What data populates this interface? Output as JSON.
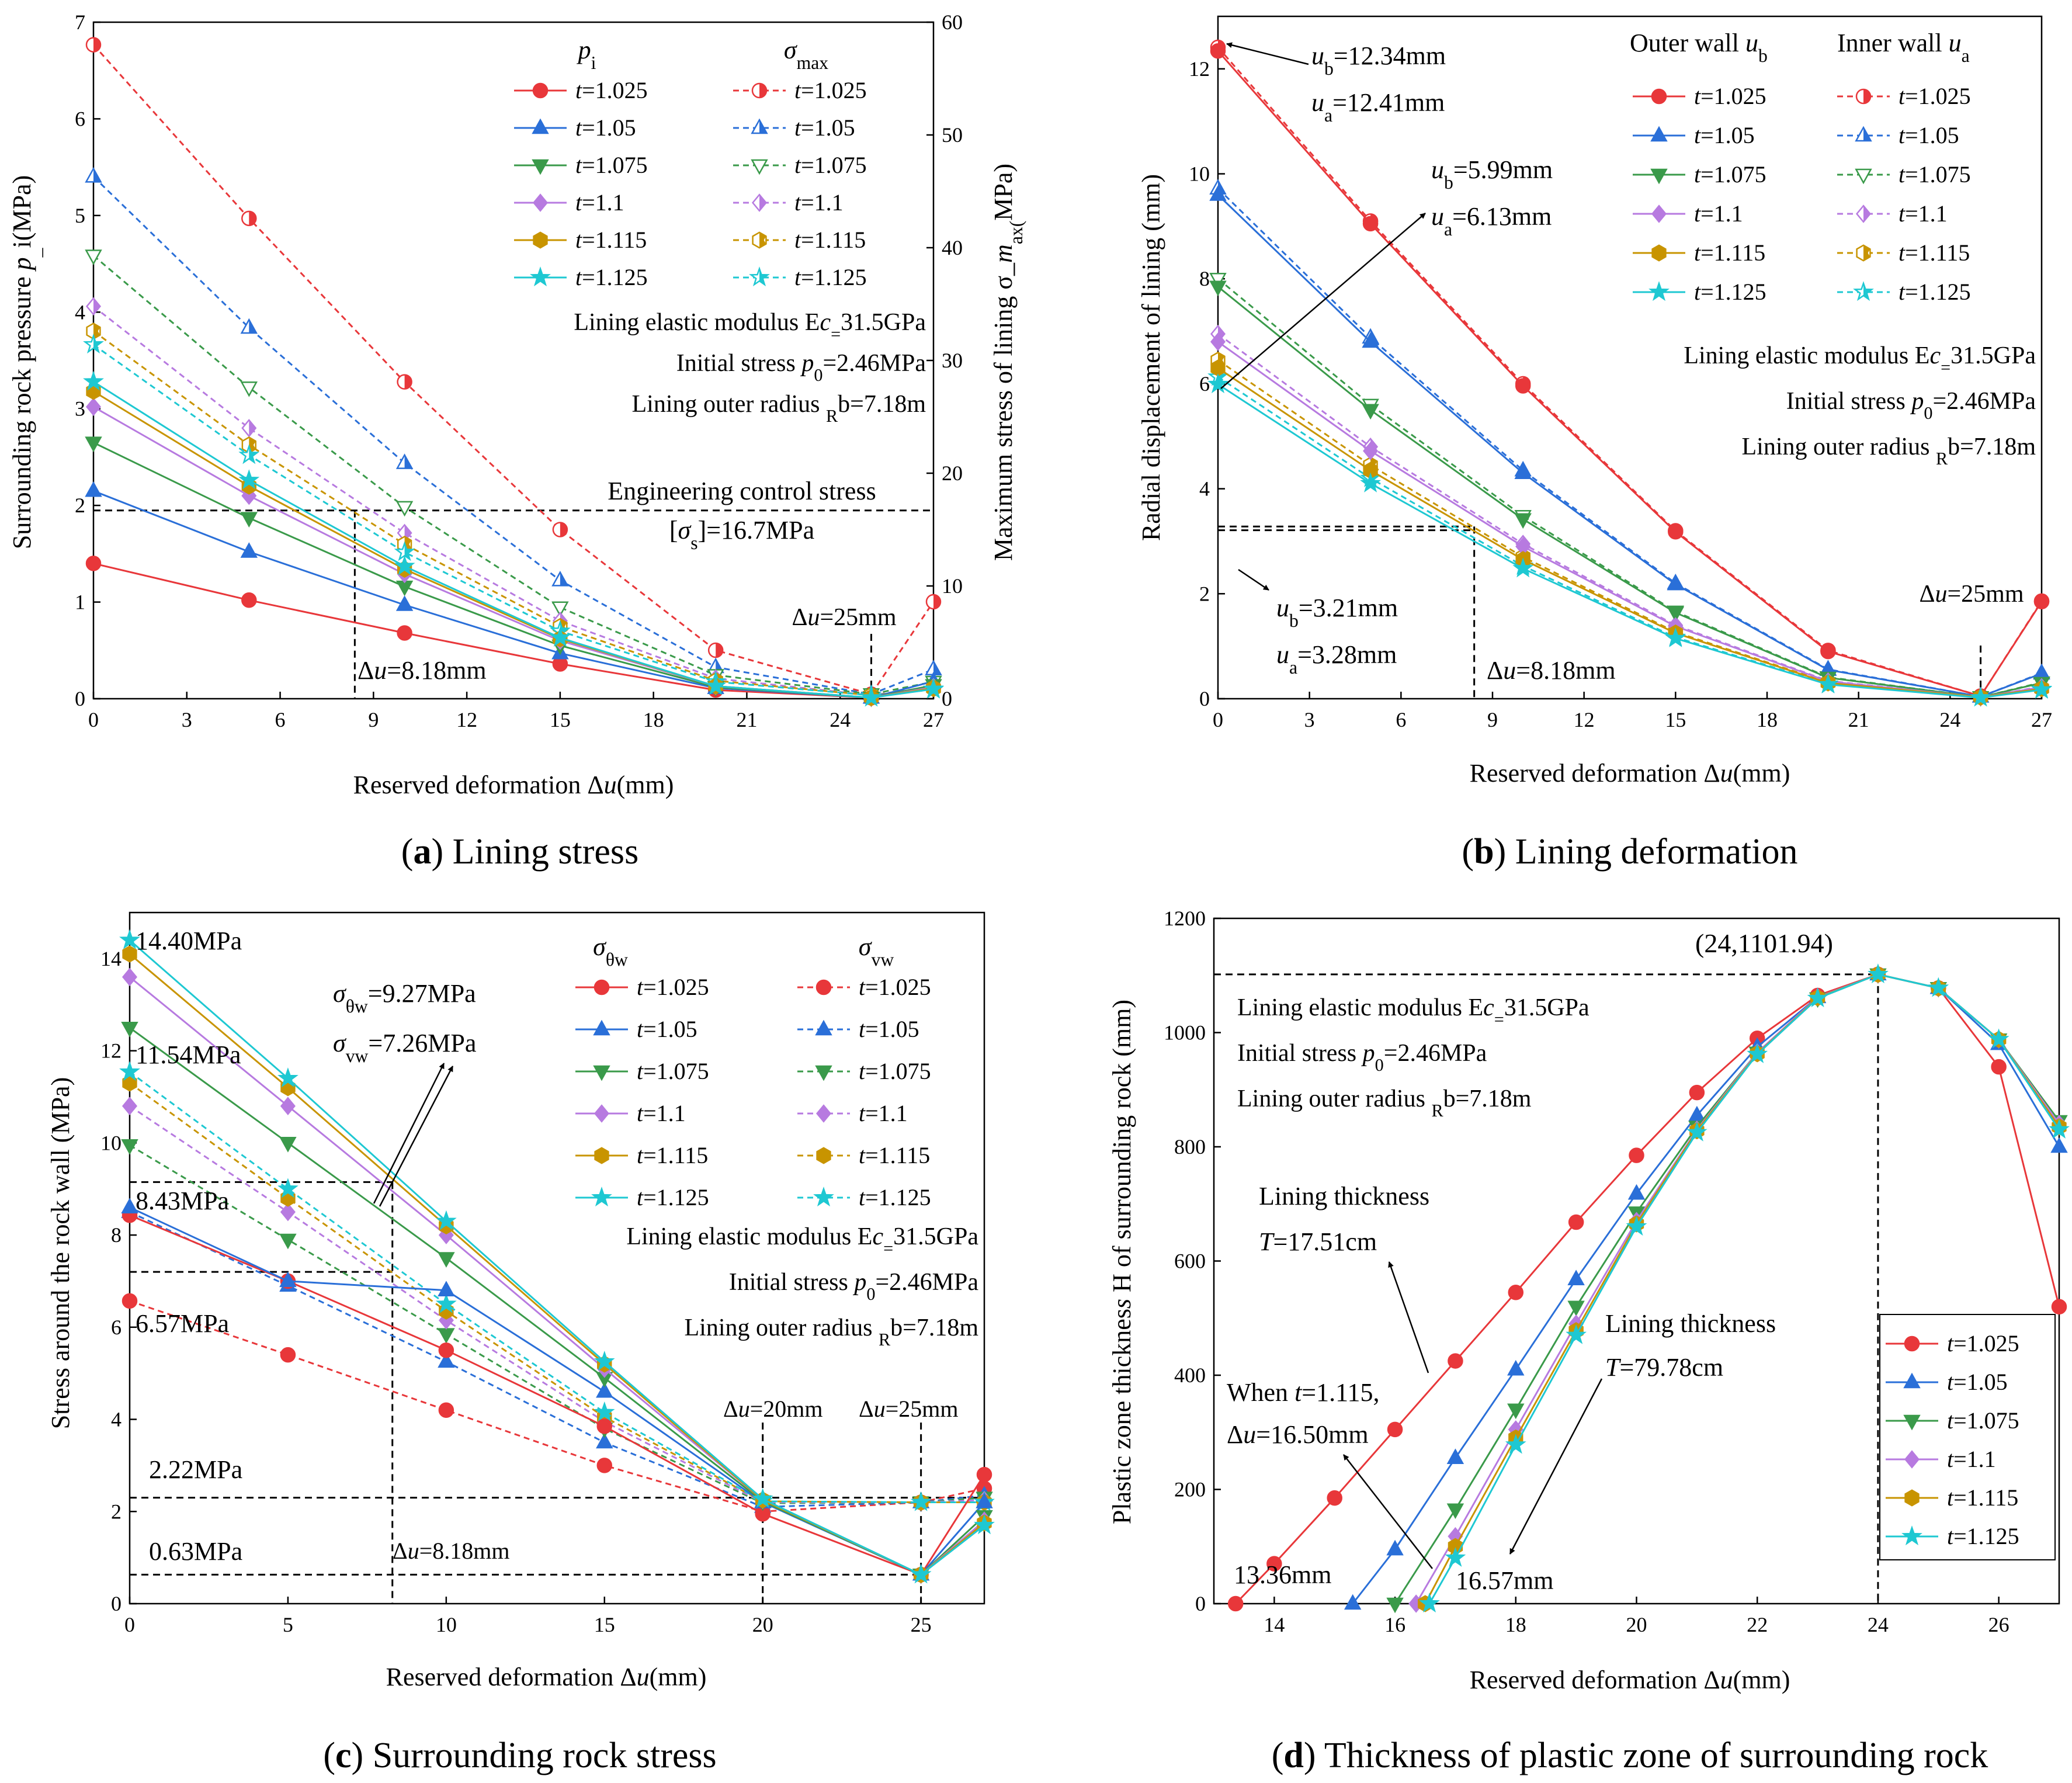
{
  "colors": {
    "t1025": "#e8373a",
    "t105": "#2a6fd8",
    "t1075": "#3a9a4a",
    "t11": "#b77ae0",
    "t1115": "#c89400",
    "t1125": "#1ec8d2"
  },
  "chart_data": [
    {
      "id": "a",
      "type": "line",
      "caption_letter": "(a)",
      "caption_text": " Lining stress",
      "xlabel": "Reserved deformation Δu(mm)",
      "ylabel": "Surrounding rock pressure p_i(MPa)",
      "y2label": "Maximum stress of lining σ_max(MPa)",
      "xlim": [
        0,
        27
      ],
      "ylim": [
        0,
        7
      ],
      "y2lim": [
        0,
        60
      ],
      "xticks": [
        "0",
        "3",
        "6",
        "9",
        "12",
        "15",
        "18",
        "21",
        "24",
        "27"
      ],
      "yticks": [
        "0",
        "1",
        "2",
        "3",
        "4",
        "5",
        "6",
        "7"
      ],
      "y2ticks": [
        "0",
        "10",
        "20",
        "30",
        "40",
        "50",
        "60"
      ],
      "x": [
        0,
        5,
        10,
        15,
        20,
        25,
        27
      ],
      "legend_headers": [
        "pi",
        "σmax"
      ],
      "legend_labels": [
        "t=1.025",
        "t=1.05",
        "t=1.075",
        "t=1.1",
        "t=1.115",
        "t=1.125"
      ],
      "series_pi": [
        {
          "name": "t=1.025",
          "values": [
            1.4,
            1.02,
            0.68,
            0.36,
            0.09,
            0.01,
            0.12
          ]
        },
        {
          "name": "t=1.05",
          "values": [
            2.15,
            1.52,
            0.97,
            0.47,
            0.11,
            0.01,
            0.18
          ]
        },
        {
          "name": "t=1.075",
          "values": [
            2.65,
            1.87,
            1.16,
            0.55,
            0.12,
            0.01,
            0.14
          ]
        },
        {
          "name": "t=1.1",
          "values": [
            3.02,
            2.1,
            1.29,
            0.6,
            0.13,
            0.01,
            0.12
          ]
        },
        {
          "name": "t=1.115",
          "values": [
            3.18,
            2.2,
            1.34,
            0.62,
            0.13,
            0.01,
            0.11
          ]
        },
        {
          "name": "t=1.125",
          "values": [
            3.28,
            2.26,
            1.37,
            0.63,
            0.13,
            0.01,
            0.1
          ]
        }
      ],
      "series_smax": [
        {
          "name": "t=1.025",
          "values": [
            58.0,
            42.6,
            28.1,
            15.0,
            4.3,
            0.4,
            8.6
          ]
        },
        {
          "name": "t=1.05",
          "values": [
            46.3,
            32.9,
            20.9,
            10.5,
            2.8,
            0.4,
            2.6
          ]
        },
        {
          "name": "t=1.075",
          "values": [
            39.3,
            27.6,
            17.0,
            8.1,
            2.1,
            0.4,
            1.5
          ]
        },
        {
          "name": "t=1.1",
          "values": [
            34.8,
            24.0,
            14.7,
            6.9,
            1.8,
            0.3,
            1.1
          ]
        },
        {
          "name": "t=1.115",
          "values": [
            32.6,
            22.5,
            13.7,
            6.4,
            1.6,
            0.3,
            0.9
          ]
        },
        {
          "name": "t=1.125",
          "values": [
            31.4,
            21.6,
            13.0,
            6.0,
            1.5,
            0.3,
            0.8
          ]
        }
      ],
      "annotations": {
        "modulus": "Lining elastic modulus Ec=31.5GPa",
        "stress": "Initial stress p0=2.46MPa",
        "radius": "Lining outer radius Rb=7.18m",
        "control_title": "Engineering control stress",
        "control_value": "[σs]=16.7MPa",
        "du25": "Δu=25mm",
        "du818": "Δu=8.18mm"
      }
    },
    {
      "id": "b",
      "type": "line",
      "caption_letter": "(b)",
      "caption_text": " Lining deformation",
      "xlabel": "Reserved deformation Δu(mm)",
      "ylabel": "Radial displacement of lining (mm)",
      "xlim": [
        0,
        27
      ],
      "ylim": [
        0,
        13
      ],
      "xticks": [
        "0",
        "3",
        "6",
        "9",
        "12",
        "15",
        "18",
        "21",
        "24",
        "27"
      ],
      "yticks": [
        "0",
        "2",
        "4",
        "6",
        "8",
        "10",
        "12"
      ],
      "x": [
        0,
        5,
        10,
        15,
        20,
        25,
        27
      ],
      "legend_headers": [
        "Outer wall ub",
        "Inner wall ua"
      ],
      "legend_labels": [
        "t=1.025",
        "t=1.05",
        "t=1.075",
        "t=1.1",
        "t=1.115",
        "t=1.125"
      ],
      "series_outer": [
        {
          "name": "t=1.025",
          "values": [
            12.34,
            9.05,
            5.96,
            3.18,
            0.9,
            0.05,
            1.85
          ]
        },
        {
          "name": "t=1.05",
          "values": [
            9.6,
            6.8,
            4.3,
            2.18,
            0.55,
            0.04,
            0.48
          ]
        },
        {
          "name": "t=1.075",
          "values": [
            7.85,
            5.5,
            3.42,
            1.64,
            0.4,
            0.03,
            0.3
          ]
        },
        {
          "name": "t=1.1",
          "values": [
            6.8,
            4.72,
            2.9,
            1.38,
            0.33,
            0.03,
            0.22
          ]
        },
        {
          "name": "t=1.115",
          "values": [
            6.3,
            4.35,
            2.65,
            1.25,
            0.3,
            0.03,
            0.19
          ]
        },
        {
          "name": "t=1.125",
          "values": [
            5.99,
            4.1,
            2.48,
            1.15,
            0.27,
            0.02,
            0.17
          ]
        }
      ],
      "series_inner": [
        {
          "name": "t=1.025",
          "values": [
            12.41,
            9.1,
            6.0,
            3.2,
            0.92,
            0.05,
            1.86
          ]
        },
        {
          "name": "t=1.05",
          "values": [
            9.72,
            6.88,
            4.35,
            2.2,
            0.56,
            0.04,
            0.49
          ]
        },
        {
          "name": "t=1.075",
          "values": [
            8.0,
            5.6,
            3.48,
            1.66,
            0.41,
            0.03,
            0.31
          ]
        },
        {
          "name": "t=1.1",
          "values": [
            6.95,
            4.8,
            2.95,
            1.4,
            0.34,
            0.03,
            0.23
          ]
        },
        {
          "name": "t=1.115",
          "values": [
            6.45,
            4.45,
            2.7,
            1.27,
            0.31,
            0.03,
            0.2
          ]
        },
        {
          "name": "t=1.125",
          "values": [
            6.13,
            4.2,
            2.53,
            1.17,
            0.28,
            0.02,
            0.18
          ]
        }
      ],
      "annotations": {
        "ub1": "ub=12.34mm",
        "ua1": "ua=12.41mm",
        "ub2": "ub=5.99mm",
        "ua2": "ua=6.13mm",
        "ub3": "ub=3.21mm",
        "ua3": "ua=3.28mm",
        "modulus": "Lining elastic modulus Ec=31.5GPa",
        "stress": "Initial stress p0=2.46MPa",
        "radius": "Lining outer radius Rb=7.18m",
        "du25": "Δu=25mm",
        "du818": "Δu=8.18mm"
      }
    },
    {
      "id": "c",
      "type": "line",
      "caption_letter": "(c)",
      "caption_text": " Surrounding rock stress",
      "xlabel": "Reserved deformation Δu(mm)",
      "ylabel": "Stress around the rock wall (MPa)",
      "xlim": [
        0,
        27
      ],
      "ylim": [
        0,
        15
      ],
      "xticks": [
        "0",
        "5",
        "10",
        "15",
        "20",
        "25"
      ],
      "yticks": [
        "0",
        "2",
        "4",
        "6",
        "8",
        "10",
        "12",
        "14"
      ],
      "x": [
        0,
        5,
        10,
        15,
        20,
        25,
        27
      ],
      "legend_headers": [
        "σθw",
        "σvw"
      ],
      "legend_labels": [
        "t=1.025",
        "t=1.05",
        "t=1.075",
        "t=1.1",
        "t=1.115",
        "t=1.125"
      ],
      "series_theta": [
        {
          "name": "t=1.025",
          "values": [
            8.43,
            7.0,
            5.5,
            3.85,
            1.95,
            0.63,
            2.8
          ]
        },
        {
          "name": "t=1.05",
          "values": [
            8.6,
            7.0,
            6.8,
            4.6,
            2.2,
            0.63,
            2.2
          ]
        },
        {
          "name": "t=1.075",
          "values": [
            12.5,
            10.0,
            7.5,
            4.9,
            2.22,
            0.63,
            1.9
          ]
        },
        {
          "name": "t=1.1",
          "values": [
            13.6,
            10.8,
            8.0,
            5.1,
            2.25,
            0.63,
            1.8
          ]
        },
        {
          "name": "t=1.115",
          "values": [
            14.1,
            11.2,
            8.2,
            5.2,
            2.25,
            0.63,
            1.75
          ]
        },
        {
          "name": "t=1.125",
          "values": [
            14.4,
            11.4,
            8.3,
            5.25,
            2.27,
            0.63,
            1.7
          ]
        }
      ],
      "series_v": [
        {
          "name": "t=1.025",
          "values": [
            6.57,
            5.4,
            4.2,
            3.0,
            2.0,
            2.2,
            2.5
          ]
        },
        {
          "name": "t=1.05",
          "values": [
            8.5,
            6.9,
            5.25,
            3.5,
            2.1,
            2.2,
            2.35
          ]
        },
        {
          "name": "t=1.075",
          "values": [
            9.95,
            7.9,
            5.85,
            3.8,
            2.18,
            2.2,
            2.3
          ]
        },
        {
          "name": "t=1.1",
          "values": [
            10.8,
            8.5,
            6.15,
            3.95,
            2.2,
            2.2,
            2.25
          ]
        },
        {
          "name": "t=1.115",
          "values": [
            11.3,
            8.8,
            6.35,
            4.05,
            2.22,
            2.2,
            2.2
          ]
        },
        {
          "name": "t=1.125",
          "values": [
            11.54,
            9.0,
            6.5,
            4.15,
            2.22,
            2.2,
            2.2
          ]
        }
      ],
      "annotations": {
        "v1440": "14.40MPa",
        "v1154": "11.54MPa",
        "v843": "8.43MPa",
        "v657": "6.57MPa",
        "v222": "2.22MPa",
        "v063": "0.63MPa",
        "theta_w": "σθw=9.27MPa",
        "v_w": "σvw=7.26MPa",
        "modulus": "Lining elastic modulus Ec=31.5GPa",
        "stress": "Initial stress p0=2.46MPa",
        "radius": "Lining outer radius Rb=7.18m",
        "du20": "Δu=20mm",
        "du25": "Δu=25mm",
        "du818": "Δu=8.18mm"
      }
    },
    {
      "id": "d",
      "type": "line",
      "caption_letter": "(d)",
      "caption_text": " Thickness of plastic zone of surrounding rock",
      "xlabel": "Reserved deformation Δu(mm)",
      "ylabel": "Plastic zone thickness H of surrounding rock (mm)",
      "xlim": [
        13,
        27
      ],
      "ylim": [
        0,
        1200
      ],
      "xticks": [
        "14",
        "16",
        "18",
        "20",
        "22",
        "24",
        "26"
      ],
      "yticks": [
        "0",
        "200",
        "400",
        "600",
        "800",
        "1000",
        "1200"
      ],
      "legend_labels": [
        "t=1.025",
        "t=1.05",
        "t=1.075",
        "t=1.1",
        "t=1.115",
        "t=1.125"
      ],
      "series": [
        {
          "name": "t=1.025",
          "x": [
            13.36,
            14,
            15,
            16,
            17,
            18,
            19,
            20,
            21,
            22,
            23,
            24,
            25,
            26,
            27
          ],
          "values": [
            0,
            70,
            185,
            305,
            425,
            545,
            668,
            785,
            895,
            990,
            1065,
            1101.94,
            1078,
            940,
            520
          ]
        },
        {
          "name": "t=1.05",
          "x": [
            15.3,
            16,
            17,
            18,
            19,
            20,
            21,
            22,
            23,
            24,
            25,
            26,
            27
          ],
          "values": [
            0,
            95,
            255,
            410,
            568,
            718,
            855,
            975,
            1062,
            1101.94,
            1078,
            980,
            800
          ]
        },
        {
          "name": "t=1.075",
          "x": [
            16.0,
            17,
            18,
            19,
            20,
            21,
            22,
            23,
            24,
            25,
            26,
            27
          ],
          "values": [
            0,
            165,
            340,
            520,
            685,
            835,
            965,
            1060,
            1101.94,
            1078,
            988,
            845
          ]
        },
        {
          "name": "t=1.1",
          "x": [
            16.35,
            17,
            18,
            19,
            20,
            21,
            22,
            23,
            24,
            25,
            26,
            27
          ],
          "values": [
            0,
            118,
            305,
            490,
            670,
            830,
            965,
            1062,
            1101.94,
            1078,
            988,
            840
          ]
        },
        {
          "name": "t=1.115",
          "x": [
            16.5,
            17,
            18,
            19,
            20,
            21,
            22,
            23,
            24,
            25,
            26,
            27
          ],
          "values": [
            0,
            100,
            290,
            478,
            665,
            828,
            963,
            1061,
            1101.94,
            1078,
            988,
            835
          ]
        },
        {
          "name": "t=1.125",
          "x": [
            16.57,
            17,
            18,
            19,
            20,
            21,
            22,
            23,
            24,
            25,
            26,
            27
          ],
          "values": [
            0,
            80,
            278,
            470,
            660,
            825,
            962,
            1060,
            1101.94,
            1078,
            988,
            830
          ]
        }
      ],
      "annotations": {
        "peak": "(24,1101.94)",
        "modulus": "Lining elastic modulus Ec=31.5GPa",
        "stress": "Initial stress p0=2.46MPa",
        "radius": "Lining outer radius Rb=7.18m",
        "thick1_title": "Lining thickness",
        "thick1_value": "T=17.51cm",
        "thick2_title": "Lining thickness",
        "thick2_value": "T=79.78cm",
        "when1": "When t=1.115,",
        "when2": "Δu=16.50mm",
        "mm1336": "13.36mm",
        "mm1657": "16.57mm"
      }
    }
  ]
}
